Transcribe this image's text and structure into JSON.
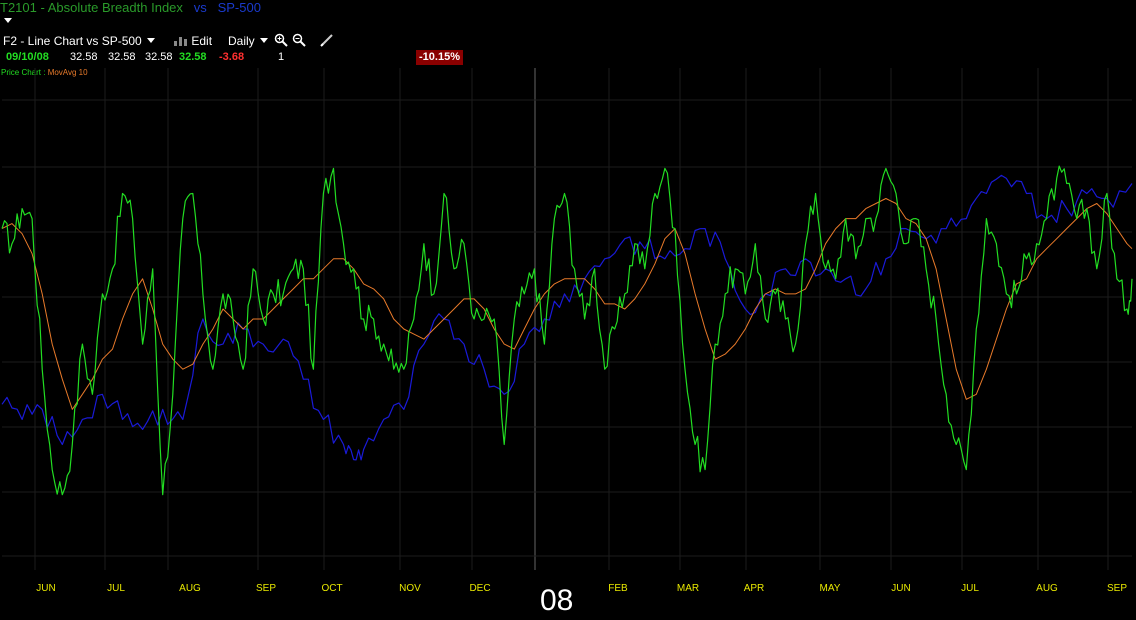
{
  "header": {
    "symbol": "T2101",
    "dash": "-",
    "index_name": "Absolute Breadth Index",
    "vs": "vs",
    "compare": "SP-500"
  },
  "toolbar": {
    "chart_label": "F2 - Line Chart vs SP-500",
    "edit_label": "Edit",
    "period_label": "Daily"
  },
  "quote": {
    "date": "09/10/08",
    "open": "32.58",
    "high": "32.58",
    "low": "32.58",
    "last": "32.58",
    "change": "-3.68",
    "volume": "1",
    "percent": "-10.15%"
  },
  "legend": {
    "price_label": "Price Chart",
    "sep": " : ",
    "mov_label": "MovAvg 10"
  },
  "year_label": "08",
  "colors": {
    "breadth": "#22dd22",
    "movavg": "#e87a2a",
    "sp500": "#1a1ad8",
    "grid": "#1c1c1c",
    "month": "#e8e800"
  },
  "chart_data": {
    "type": "line",
    "series": [
      {
        "name": "Price Chart",
        "color": "#22dd22",
        "x": [
          0,
          10,
          20,
          30,
          40,
          50,
          60,
          70,
          80,
          90,
          100,
          110,
          120,
          130,
          140,
          150,
          160,
          170,
          180,
          190,
          200,
          210,
          220,
          230,
          240,
          250,
          260,
          270,
          280,
          290,
          300,
          310,
          320,
          330,
          340,
          350,
          360,
          370,
          380,
          390,
          400,
          410,
          420,
          430,
          440,
          450,
          460,
          470,
          480,
          490,
          500,
          510,
          520,
          530,
          540,
          550,
          560,
          570,
          580,
          590,
          600,
          610,
          620,
          630,
          640,
          650,
          660,
          670,
          680,
          690,
          700,
          710,
          720,
          730,
          740,
          750,
          760,
          770,
          780,
          790,
          800,
          810,
          820,
          830,
          840,
          850,
          860,
          870,
          880,
          890,
          900,
          910,
          920,
          930,
          940,
          950,
          960,
          970,
          980,
          990,
          1000,
          1010,
          1020,
          1030,
          1040,
          1050,
          1060,
          1070,
          1080,
          1090,
          1100,
          1110,
          1120,
          1125
        ],
        "y": [
          68,
          65,
          72,
          70,
          40,
          20,
          15,
          25,
          45,
          35,
          55,
          60,
          75,
          70,
          45,
          60,
          15,
          35,
          70,
          75,
          55,
          40,
          55,
          50,
          40,
          60,
          50,
          55,
          55,
          60,
          60,
          40,
          75,
          80,
          65,
          60,
          50,
          50,
          45,
          40,
          40,
          50,
          65,
          55,
          75,
          60,
          65,
          50,
          50,
          50,
          25,
          50,
          55,
          60,
          45,
          70,
          75,
          60,
          50,
          60,
          40,
          48,
          55,
          65,
          60,
          75,
          80,
          68,
          40,
          25,
          20,
          45,
          55,
          60,
          55,
          65,
          50,
          55,
          50,
          45,
          65,
          75,
          60,
          58,
          70,
          62,
          70,
          70,
          80,
          75,
          65,
          70,
          60,
          50,
          35,
          25,
          20,
          48,
          70,
          65,
          55,
          55,
          62,
          65,
          70,
          78,
          77,
          70,
          72,
          60,
          75,
          58,
          52,
          58
        ]
      },
      {
        "name": "MovAvg 10",
        "color": "#e87a2a",
        "x": [
          0,
          10,
          20,
          30,
          40,
          50,
          60,
          70,
          80,
          90,
          100,
          110,
          120,
          130,
          140,
          150,
          160,
          170,
          180,
          190,
          200,
          210,
          220,
          230,
          240,
          250,
          260,
          270,
          280,
          290,
          300,
          310,
          320,
          330,
          340,
          350,
          360,
          370,
          380,
          390,
          400,
          410,
          420,
          430,
          440,
          450,
          460,
          470,
          480,
          490,
          500,
          510,
          520,
          530,
          540,
          550,
          560,
          570,
          580,
          590,
          600,
          610,
          620,
          630,
          640,
          650,
          660,
          670,
          680,
          690,
          700,
          710,
          720,
          730,
          740,
          750,
          760,
          770,
          780,
          790,
          800,
          810,
          820,
          830,
          840,
          850,
          860,
          870,
          880,
          890,
          900,
          910,
          920,
          930,
          940,
          950,
          960,
          970,
          980,
          990,
          1000,
          1010,
          1020,
          1030,
          1040,
          1050,
          1060,
          1070,
          1080,
          1090,
          1100,
          1110,
          1120,
          1125
        ],
        "y": [
          68,
          69,
          67,
          63,
          55,
          45,
          38,
          32,
          35,
          38,
          42,
          44,
          50,
          55,
          58,
          52,
          45,
          42,
          40,
          41,
          45,
          48,
          52,
          50,
          48,
          50,
          50,
          52,
          54,
          56,
          58,
          58,
          60,
          62,
          62,
          60,
          57,
          56,
          54,
          50,
          48,
          47,
          46,
          48,
          50,
          52,
          54,
          54,
          52,
          48,
          45,
          44,
          48,
          52,
          55,
          57,
          58,
          58,
          58,
          56,
          53,
          53,
          52,
          54,
          57,
          61,
          66,
          68,
          63,
          55,
          48,
          42,
          43,
          45,
          48,
          52,
          55,
          56,
          55,
          55,
          56,
          60,
          65,
          68,
          70,
          70,
          72,
          73,
          74,
          73,
          70,
          69,
          66,
          60,
          50,
          40,
          34,
          35,
          40,
          46,
          52,
          57,
          58,
          62,
          64,
          66,
          68,
          70,
          72,
          73,
          71,
          68,
          65,
          64
        ]
      },
      {
        "name": "SP-500",
        "color": "#1a1ad8",
        "x": [
          0,
          20,
          40,
          60,
          80,
          100,
          120,
          140,
          160,
          180,
          200,
          220,
          240,
          260,
          280,
          300,
          320,
          340,
          350,
          360,
          380,
          400,
          420,
          440,
          460,
          480,
          500,
          520,
          540,
          560,
          580,
          600,
          620,
          640,
          660,
          680,
          700,
          720,
          740,
          760,
          780,
          800,
          820,
          840,
          860,
          880,
          900,
          920,
          940,
          960,
          980,
          1000,
          1020,
          1040,
          1060,
          1080,
          1100,
          1125
        ],
        "y": [
          33,
          30,
          32,
          25,
          30,
          35,
          30,
          28,
          32,
          30,
          50,
          45,
          48,
          45,
          46,
          38,
          30,
          25,
          22,
          24,
          30,
          32,
          45,
          50,
          45,
          40,
          35,
          45,
          50,
          55,
          58,
          62,
          66,
          64,
          62,
          64,
          68,
          62,
          52,
          55,
          60,
          62,
          60,
          58,
          56,
          62,
          68,
          66,
          68,
          70,
          75,
          78,
          75,
          70,
          72,
          75,
          74,
          77
        ]
      }
    ],
    "ylim": [
      0,
      100
    ],
    "xlim": [
      0,
      1125
    ],
    "categories": [
      "JUN",
      "JUL",
      "AUG",
      "SEP",
      "OCT",
      "NOV",
      "DEC",
      "FEB",
      "MAR",
      "APR",
      "MAY",
      "JUN",
      "JUL",
      "AUG",
      "SEP"
    ],
    "grid": true
  }
}
